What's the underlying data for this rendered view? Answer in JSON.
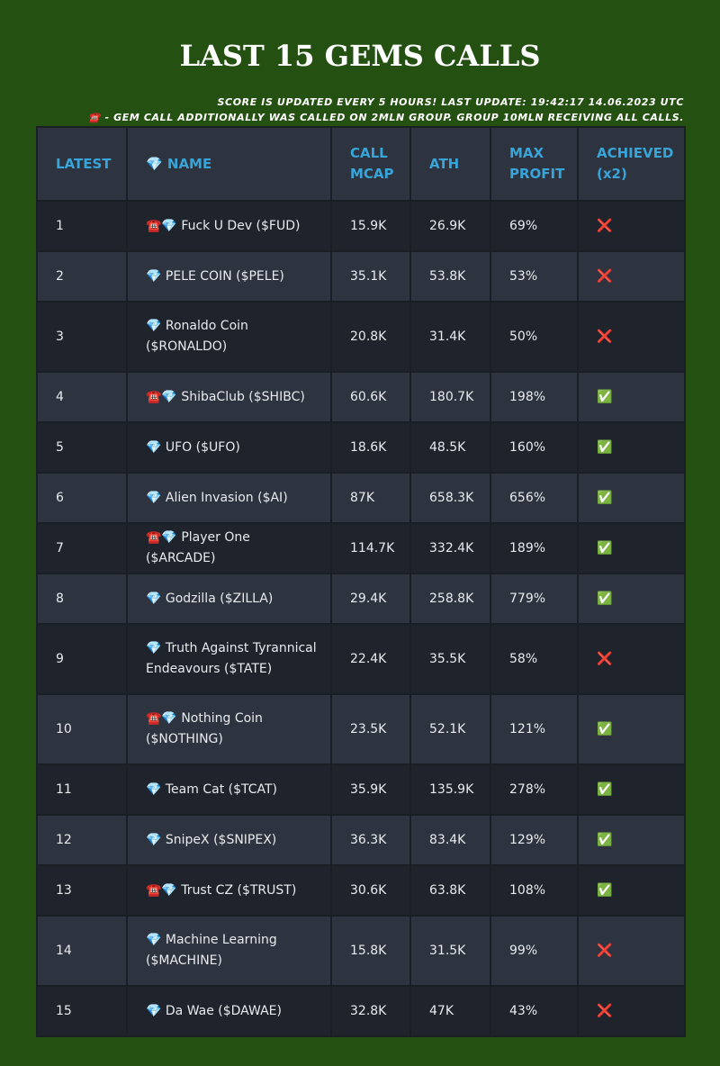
{
  "header": {
    "title": "LAST 15 GEMS CALLS",
    "notes": [
      "SCORE IS UPDATED EVERY 5 HOURS! LAST UPDATE: 19:42:17 14.06.2023 UTC",
      "☎️ - GEM CALL ADDITIONALLY WAS CALLED ON 2MLN GROUP. GROUP 10MLN RECEIVING ALL CALLS."
    ]
  },
  "table": {
    "columns": [
      "LATEST",
      "💎 NAME",
      "CALL MCAP",
      "ATH",
      "MAX PROFIT",
      "ACHIEVED (x2)"
    ],
    "rows": [
      [
        "1",
        "☎️💎 Fuck U Dev ($FUD)",
        "15.9K",
        "26.9K",
        "69%",
        "❌"
      ],
      [
        "2",
        "💎 PELE COIN ($PELE)",
        "35.1K",
        "53.8K",
        "53%",
        "❌"
      ],
      [
        "3",
        "💎 Ronaldo Coin ($RONALDO)",
        "20.8K",
        "31.4K",
        "50%",
        "❌"
      ],
      [
        "4",
        "☎️💎 ShibaClub ($SHIBC)",
        "60.6K",
        "180.7K",
        "198%",
        "✅"
      ],
      [
        "5",
        "💎 UFO ($UFO)",
        "18.6K",
        "48.5K",
        "160%",
        "✅"
      ],
      [
        "6",
        "💎 Alien Invasion ($AI)",
        "87K",
        "658.3K",
        "656%",
        "✅"
      ],
      [
        "7",
        "☎️💎 Player One ($ARCADE)",
        "114.7K",
        "332.4K",
        "189%",
        "✅"
      ],
      [
        "8",
        "💎 Godzilla ($ZILLA)",
        "29.4K",
        "258.8K",
        "779%",
        "✅"
      ],
      [
        "9",
        "💎 Truth Against Tyrannical Endeavours ($TATE)",
        "22.4K",
        "35.5K",
        "58%",
        "❌"
      ],
      [
        "10",
        "☎️💎 Nothing Coin ($NOTHING)",
        "23.5K",
        "52.1K",
        "121%",
        "✅"
      ],
      [
        "11",
        "💎 Team Cat ($TCAT)",
        "35.9K",
        "135.9K",
        "278%",
        "✅"
      ],
      [
        "12",
        "💎 SnipeX ($SNIPEX)",
        "36.3K",
        "83.4K",
        "129%",
        "✅"
      ],
      [
        "13",
        "☎️💎 Trust CZ ($TRUST)",
        "30.6K",
        "63.8K",
        "108%",
        "✅"
      ],
      [
        "14",
        "💎 Machine Learning ($MACHINE)",
        "15.8K",
        "31.5K",
        "99%",
        "❌"
      ],
      [
        "15",
        "💎 Da Wae ($DAWAE)",
        "32.8K",
        "47K",
        "43%",
        "❌"
      ]
    ]
  }
}
